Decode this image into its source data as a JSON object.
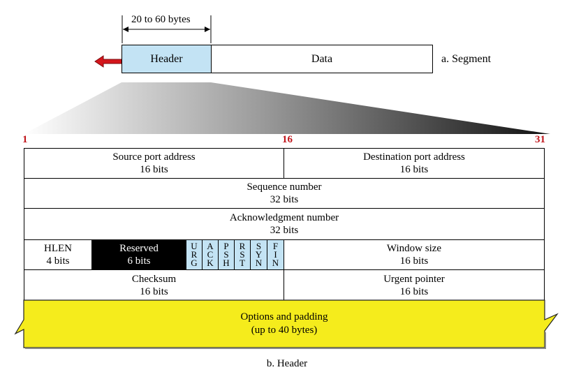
{
  "segment": {
    "size_label": "20 to 60 bytes",
    "header_label": "Header",
    "data_label": "Data",
    "caption": "a. Segment"
  },
  "bit_positions": {
    "start": "1",
    "middle": "16",
    "end": "31"
  },
  "rows": {
    "source_port": {
      "name": "Source port address",
      "size": "16 bits"
    },
    "dest_port": {
      "name": "Destination port address",
      "size": "16 bits"
    },
    "sequence": {
      "name": "Sequence number",
      "size": "32 bits"
    },
    "ack": {
      "name": "Acknowledgment number",
      "size": "32 bits"
    },
    "hlen": {
      "name": "HLEN",
      "size": "4 bits"
    },
    "reserved": {
      "name": "Reserved",
      "size": "6 bits"
    },
    "flags": [
      {
        "letters": [
          "U",
          "R",
          "G"
        ]
      },
      {
        "letters": [
          "A",
          "C",
          "K"
        ]
      },
      {
        "letters": [
          "P",
          "S",
          "H"
        ]
      },
      {
        "letters": [
          "R",
          "S",
          "T"
        ]
      },
      {
        "letters": [
          "S",
          "Y",
          "N"
        ]
      },
      {
        "letters": [
          "F",
          "I",
          "N"
        ]
      }
    ],
    "window": {
      "name": "Window size",
      "size": "16 bits"
    },
    "checksum": {
      "name": "Checksum",
      "size": "16 bits"
    },
    "urgent": {
      "name": "Urgent pointer",
      "size": "16 bits"
    },
    "options": {
      "name": "Options and padding",
      "size": "(up to 40 bytes)"
    }
  },
  "caption": "b. Header",
  "colors": {
    "header_fill": "#c3e3f4",
    "flag_fill": "#c3e3f4",
    "reserved_fill": "#000000",
    "options_fill": "#f5ec1c",
    "arrow": "#d4161c",
    "bit_number": "#c0151b"
  }
}
